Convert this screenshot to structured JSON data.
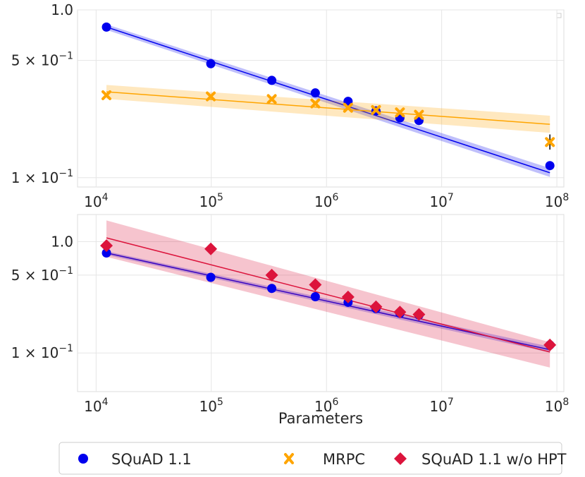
{
  "chart_data": [
    {
      "type": "scatter",
      "xscale": "log",
      "yscale": "log",
      "xlim": [
        6900,
        115000000
      ],
      "ylim": [
        0.088,
        1.0
      ],
      "xlabel": "",
      "ylabel": "",
      "grid": true,
      "x_ticks": [
        {
          "value": 10000,
          "base": "10",
          "exp": "4"
        },
        {
          "value": 100000,
          "base": "10",
          "exp": "5"
        },
        {
          "value": 1000000,
          "base": "10",
          "exp": "6"
        },
        {
          "value": 10000000,
          "base": "10",
          "exp": "7"
        },
        {
          "value": 100000000,
          "base": "10",
          "exp": "8"
        }
      ],
      "y_ticks": [
        {
          "value": 1.0,
          "label": "1.0"
        },
        {
          "value": 0.5,
          "label": "5 × 10",
          "exp": "−1"
        },
        {
          "value": 0.1,
          "label": "1 × 10",
          "exp": "−1"
        }
      ],
      "series": [
        {
          "name": "SQuAD 1.1",
          "marker": "circle",
          "color": "#0000ee",
          "x": [
            12300,
            99000,
            335000,
            800000,
            1540000,
            2690000,
            4340000,
            6350000,
            87000000
          ],
          "y": [
            0.79,
            0.478,
            0.38,
            0.32,
            0.285,
            0.25,
            0.227,
            0.219,
            0.118
          ],
          "fit": {
            "y_start": 0.79,
            "y_end": 0.107,
            "band_start": [
              0.76,
              0.82
            ],
            "band_end": [
              0.101,
              0.114
            ]
          }
        },
        {
          "name": "MRPC",
          "marker": "x",
          "color": "#ffa500",
          "x": [
            12300,
            99000,
            335000,
            800000,
            1540000,
            2690000,
            4340000,
            6350000,
            87000000
          ],
          "y": [
            0.31,
            0.305,
            0.294,
            0.277,
            0.261,
            0.253,
            0.245,
            0.237,
            0.163
          ],
          "fit": {
            "y_start": 0.325,
            "y_end": 0.208,
            "band_start": [
              0.295,
              0.357
            ],
            "band_end": [
              0.185,
              0.234
            ]
          },
          "error_bar": {
            "x": 87000000,
            "y_low": 0.147,
            "y_high": 0.181
          }
        }
      ]
    },
    {
      "type": "scatter",
      "xscale": "log",
      "yscale": "log",
      "xlim": [
        6900,
        115000000
      ],
      "ylim": [
        0.045,
        1.75
      ],
      "xlabel": "Parameters",
      "ylabel": "",
      "grid": true,
      "x_ticks": [
        {
          "value": 10000,
          "base": "10",
          "exp": "4"
        },
        {
          "value": 100000,
          "base": "10",
          "exp": "5"
        },
        {
          "value": 1000000,
          "base": "10",
          "exp": "6"
        },
        {
          "value": 10000000,
          "base": "10",
          "exp": "7"
        },
        {
          "value": 100000000,
          "base": "10",
          "exp": "8"
        }
      ],
      "y_ticks": [
        {
          "value": 1.0,
          "label": "1.0"
        },
        {
          "value": 0.5,
          "label": "5 × 10",
          "exp": "−1"
        },
        {
          "value": 0.1,
          "label": "1 × 10",
          "exp": "−1"
        }
      ],
      "series": [
        {
          "name": "SQuAD 1.1",
          "marker": "circle",
          "color": "#0000ee",
          "x": [
            12300,
            99000,
            335000,
            800000,
            1540000,
            2690000,
            4340000,
            6350000,
            87000000
          ],
          "y": [
            0.79,
            0.478,
            0.38,
            0.32,
            0.285,
            0.25,
            0.227,
            0.219,
            0.118
          ],
          "fit": {
            "y_start": 0.79,
            "y_end": 0.107,
            "band_start": [
              0.76,
              0.82
            ],
            "band_end": [
              0.101,
              0.114
            ]
          }
        },
        {
          "name": "SQuAD 1.1 w/o HPT",
          "marker": "diamond",
          "color": "#dc143c",
          "x": [
            12300,
            99000,
            335000,
            800000,
            1540000,
            2690000,
            4340000,
            6350000,
            87000000
          ],
          "y": [
            0.92,
            0.86,
            0.5,
            0.41,
            0.318,
            0.26,
            0.233,
            0.222,
            0.118
          ],
          "fit": {
            "y_start": 1.08,
            "y_end": 0.102,
            "band_start": [
              0.73,
              1.55
            ],
            "band_end": [
              0.074,
              0.125
            ]
          }
        }
      ]
    }
  ],
  "legend": {
    "items": [
      {
        "label": "SQuAD 1.1",
        "marker": "circle",
        "color": "#0000ee"
      },
      {
        "label": "MRPC",
        "marker": "x",
        "color": "#ffa500"
      },
      {
        "label": "SQuAD 1.1 w/o HPT",
        "marker": "diamond",
        "color": "#dc143c"
      }
    ]
  }
}
